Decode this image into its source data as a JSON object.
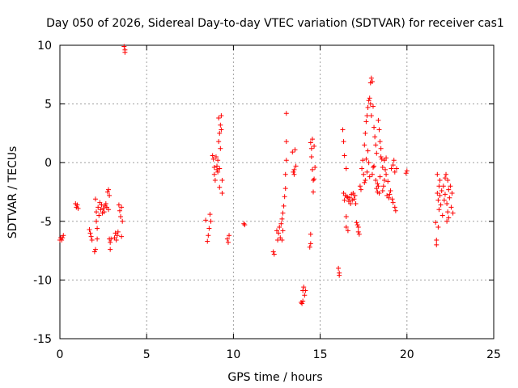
{
  "chart_data": {
    "type": "scatter",
    "title": "Day 050 of 2026, Sidereal Day-to-day VTEC variation (SDTVAR) for receiver cas1",
    "xlabel": "GPS time / hours",
    "ylabel": "SDTVAR / TECUs",
    "xlim": [
      0,
      25
    ],
    "ylim": [
      -15,
      10
    ],
    "xticks": [
      0,
      5,
      10,
      15,
      20,
      25
    ],
    "yticks": [
      -15,
      -10,
      -5,
      0,
      5,
      10
    ],
    "grid": true,
    "marker": "+",
    "color": "#ff0000",
    "series": [
      {
        "name": "SDTVAR",
        "points": [
          [
            0.0,
            -6.6
          ],
          [
            0.05,
            -6.4
          ],
          [
            0.1,
            -6.6
          ],
          [
            0.15,
            -6.4
          ],
          [
            0.2,
            -6.2
          ],
          [
            0.9,
            -3.5
          ],
          [
            0.95,
            -3.8
          ],
          [
            1.0,
            -3.6
          ],
          [
            1.05,
            -3.9
          ],
          [
            1.7,
            -5.7
          ],
          [
            1.75,
            -6.0
          ],
          [
            1.8,
            -6.3
          ],
          [
            1.85,
            -6.6
          ],
          [
            2.0,
            -7.6
          ],
          [
            2.05,
            -7.4
          ],
          [
            2.05,
            -3.1
          ],
          [
            2.1,
            -4.2
          ],
          [
            2.1,
            -5.0
          ],
          [
            2.15,
            -5.6
          ],
          [
            2.15,
            -6.5
          ],
          [
            2.2,
            -3.8
          ],
          [
            2.25,
            -4.5
          ],
          [
            2.3,
            -3.4
          ],
          [
            2.35,
            -4.0
          ],
          [
            2.4,
            -3.6
          ],
          [
            2.45,
            -4.3
          ],
          [
            2.5,
            -3.9
          ],
          [
            2.55,
            -4.2
          ],
          [
            2.6,
            -3.7
          ],
          [
            2.65,
            -3.5
          ],
          [
            2.7,
            -3.8
          ],
          [
            2.75,
            -2.5
          ],
          [
            2.8,
            -2.3
          ],
          [
            2.8,
            -4.0
          ],
          [
            2.85,
            -2.8
          ],
          [
            2.85,
            -6.5
          ],
          [
            2.9,
            -6.8
          ],
          [
            2.9,
            -7.4
          ],
          [
            2.95,
            -6.5
          ],
          [
            3.15,
            -6.4
          ],
          [
            3.2,
            -6.0
          ],
          [
            3.25,
            -6.6
          ],
          [
            3.3,
            -6.2
          ],
          [
            3.35,
            -5.9
          ],
          [
            3.4,
            -3.6
          ],
          [
            3.45,
            -4.1
          ],
          [
            3.5,
            -4.6
          ],
          [
            3.55,
            -3.8
          ],
          [
            3.55,
            -6.3
          ],
          [
            3.6,
            -5.0
          ],
          [
            3.7,
            9.9
          ],
          [
            3.75,
            9.6
          ],
          [
            3.75,
            9.4
          ],
          [
            8.4,
            -4.9
          ],
          [
            8.5,
            -6.7
          ],
          [
            8.55,
            -6.2
          ],
          [
            8.6,
            -5.6
          ],
          [
            8.65,
            -4.4
          ],
          [
            8.7,
            -5.0
          ],
          [
            8.8,
            0.6
          ],
          [
            8.85,
            0.3
          ],
          [
            8.9,
            -0.4
          ],
          [
            8.9,
            -1.0
          ],
          [
            8.95,
            -1.5
          ],
          [
            9.0,
            0.5
          ],
          [
            9.05,
            -0.3
          ],
          [
            9.05,
            -0.6
          ],
          [
            9.1,
            0.2
          ],
          [
            9.1,
            -0.8
          ],
          [
            9.15,
            3.8
          ],
          [
            9.15,
            1.8
          ],
          [
            9.2,
            2.5
          ],
          [
            9.2,
            -0.5
          ],
          [
            9.2,
            -2.1
          ],
          [
            9.25,
            3.2
          ],
          [
            9.25,
            1.2
          ],
          [
            9.3,
            4.0
          ],
          [
            9.3,
            2.8
          ],
          [
            9.35,
            -1.5
          ],
          [
            9.35,
            -2.6
          ],
          [
            9.65,
            -6.5
          ],
          [
            9.7,
            -6.8
          ],
          [
            9.75,
            -6.2
          ],
          [
            10.6,
            -5.2
          ],
          [
            10.65,
            -5.3
          ],
          [
            12.3,
            -7.6
          ],
          [
            12.35,
            -7.8
          ],
          [
            12.5,
            -5.8
          ],
          [
            12.55,
            -6.6
          ],
          [
            12.6,
            -6.0
          ],
          [
            12.65,
            -5.5
          ],
          [
            12.7,
            -6.4
          ],
          [
            12.75,
            -5.2
          ],
          [
            12.8,
            -4.8
          ],
          [
            12.8,
            -6.6
          ],
          [
            12.85,
            -4.3
          ],
          [
            12.85,
            -5.8
          ],
          [
            12.9,
            -3.7
          ],
          [
            12.95,
            -2.9
          ],
          [
            13.0,
            -2.2
          ],
          [
            13.0,
            -1.0
          ],
          [
            13.05,
            0.2
          ],
          [
            13.05,
            1.8
          ],
          [
            13.05,
            4.2
          ],
          [
            13.4,
            0.9
          ],
          [
            13.45,
            -0.8
          ],
          [
            13.5,
            -1.0
          ],
          [
            13.5,
            -0.6
          ],
          [
            13.55,
            1.1
          ],
          [
            13.6,
            -0.3
          ],
          [
            13.9,
            -11.9
          ],
          [
            13.95,
            -12.0
          ],
          [
            14.0,
            -11.8
          ],
          [
            14.0,
            -10.9
          ],
          [
            14.05,
            -10.6
          ],
          [
            14.1,
            -11.3
          ],
          [
            14.15,
            -10.9
          ],
          [
            14.4,
            -7.2
          ],
          [
            14.45,
            -6.1
          ],
          [
            14.45,
            -6.9
          ],
          [
            14.45,
            1.7
          ],
          [
            14.5,
            1.2
          ],
          [
            14.5,
            0.5
          ],
          [
            14.55,
            2.0
          ],
          [
            14.55,
            -0.6
          ],
          [
            14.6,
            -1.5
          ],
          [
            14.6,
            -2.5
          ],
          [
            14.65,
            1.4
          ],
          [
            14.65,
            -1.4
          ],
          [
            14.7,
            -0.4
          ],
          [
            16.05,
            -9.0
          ],
          [
            16.1,
            -9.4
          ],
          [
            16.1,
            -9.6
          ],
          [
            16.3,
            2.8
          ],
          [
            16.35,
            1.8
          ],
          [
            16.35,
            -2.6
          ],
          [
            16.4,
            0.6
          ],
          [
            16.4,
            -3.2
          ],
          [
            16.45,
            -2.8
          ],
          [
            16.5,
            -0.5
          ],
          [
            16.5,
            -4.6
          ],
          [
            16.5,
            -5.5
          ],
          [
            16.55,
            -2.9
          ],
          [
            16.6,
            -3.0
          ],
          [
            16.6,
            -5.8
          ],
          [
            16.65,
            -3.3
          ],
          [
            16.7,
            -3.0
          ],
          [
            16.75,
            -3.5
          ],
          [
            16.8,
            -2.7
          ],
          [
            16.85,
            -3.2
          ],
          [
            16.9,
            -2.6
          ],
          [
            16.95,
            -3.1
          ],
          [
            17.0,
            -2.8
          ],
          [
            17.05,
            -3.5
          ],
          [
            17.1,
            -5.1
          ],
          [
            17.15,
            -5.3
          ],
          [
            17.2,
            -5.9
          ],
          [
            17.2,
            -5.5
          ],
          [
            17.25,
            -6.1
          ],
          [
            17.3,
            -2.0
          ],
          [
            17.35,
            -2.3
          ],
          [
            17.4,
            -0.5
          ],
          [
            17.45,
            0.2
          ],
          [
            17.5,
            -1.0
          ],
          [
            17.55,
            1.5
          ],
          [
            17.55,
            -1.7
          ],
          [
            17.6,
            2.5
          ],
          [
            17.6,
            -1.5
          ],
          [
            17.65,
            3.5
          ],
          [
            17.65,
            0.3
          ],
          [
            17.7,
            4.0
          ],
          [
            17.7,
            -0.8
          ],
          [
            17.75,
            4.7
          ],
          [
            17.75,
            1.0
          ],
          [
            17.8,
            5.3
          ],
          [
            17.8,
            0.0
          ],
          [
            17.85,
            5.5
          ],
          [
            17.85,
            -1.2
          ],
          [
            17.9,
            5.0
          ],
          [
            17.9,
            6.8
          ],
          [
            17.95,
            7.2
          ],
          [
            17.95,
            4.0
          ],
          [
            18.0,
            6.9
          ],
          [
            18.0,
            -1.0
          ],
          [
            18.05,
            4.8
          ],
          [
            18.05,
            -0.4
          ],
          [
            18.1,
            3.0
          ],
          [
            18.1,
            -0.3
          ],
          [
            18.15,
            2.2
          ],
          [
            18.2,
            1.5
          ],
          [
            18.2,
            -1.5
          ],
          [
            18.25,
            0.8
          ],
          [
            18.25,
            -2.2
          ],
          [
            18.3,
            -1.8
          ],
          [
            18.3,
            -2.5
          ],
          [
            18.35,
            3.6
          ],
          [
            18.35,
            -2.0
          ],
          [
            18.4,
            2.8
          ],
          [
            18.4,
            -2.6
          ],
          [
            18.45,
            1.8
          ],
          [
            18.45,
            -1.2
          ],
          [
            18.5,
            1.2
          ],
          [
            18.5,
            0.5
          ],
          [
            18.55,
            0.3
          ],
          [
            18.6,
            -0.4
          ],
          [
            18.6,
            -2.4
          ],
          [
            18.65,
            -2.0
          ],
          [
            18.7,
            -1.5
          ],
          [
            18.7,
            0.2
          ],
          [
            18.75,
            -0.6
          ],
          [
            18.8,
            -1.0
          ],
          [
            18.8,
            0.4
          ],
          [
            18.85,
            -2.8
          ],
          [
            18.9,
            -1.6
          ],
          [
            18.95,
            -3.0
          ],
          [
            19.0,
            -2.7
          ],
          [
            19.05,
            -2.4
          ],
          [
            19.1,
            -0.5
          ],
          [
            19.15,
            -3.1
          ],
          [
            19.2,
            -0.2
          ],
          [
            19.2,
            -3.4
          ],
          [
            19.25,
            0.2
          ],
          [
            19.3,
            -0.8
          ],
          [
            19.3,
            -3.8
          ],
          [
            19.35,
            -4.1
          ],
          [
            19.4,
            -0.5
          ],
          [
            19.95,
            -0.9
          ],
          [
            20.0,
            -0.7
          ],
          [
            21.65,
            -5.1
          ],
          [
            21.7,
            -6.6
          ],
          [
            21.7,
            -7.0
          ],
          [
            21.75,
            -1.0
          ],
          [
            21.75,
            -2.6
          ],
          [
            21.8,
            -3.2
          ],
          [
            21.8,
            -5.5
          ],
          [
            21.85,
            -2.0
          ],
          [
            21.85,
            -4.0
          ],
          [
            21.9,
            -2.8
          ],
          [
            21.9,
            -1.5
          ],
          [
            21.95,
            -3.6
          ],
          [
            22.0,
            -2.4
          ],
          [
            22.05,
            -4.5
          ],
          [
            22.1,
            -2.0
          ],
          [
            22.15,
            -3.2
          ],
          [
            22.2,
            -2.7
          ],
          [
            22.2,
            -1.3
          ],
          [
            22.25,
            -1.0
          ],
          [
            22.3,
            -3.5
          ],
          [
            22.3,
            -5.0
          ],
          [
            22.35,
            -1.5
          ],
          [
            22.35,
            -4.2
          ],
          [
            22.4,
            -2.3
          ],
          [
            22.4,
            -4.7
          ],
          [
            22.45,
            -3.0
          ],
          [
            22.5,
            -2.0
          ],
          [
            22.55,
            -3.8
          ],
          [
            22.6,
            -2.6
          ],
          [
            22.65,
            -4.3
          ]
        ]
      }
    ]
  }
}
